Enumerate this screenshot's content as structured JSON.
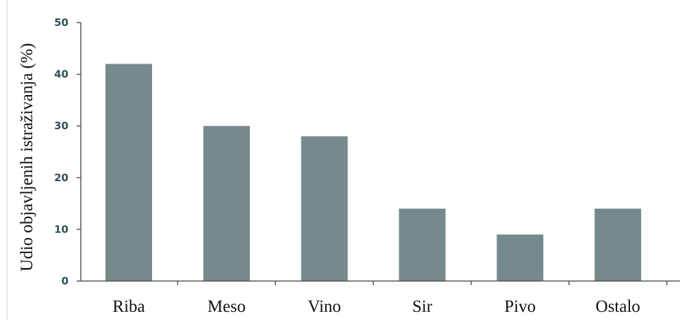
{
  "chart_data": {
    "type": "bar",
    "categories": [
      "Riba",
      "Meso",
      "Vino",
      "Sir",
      "Pivo",
      "Ostalo"
    ],
    "values": [
      42,
      30,
      28,
      14,
      9,
      14
    ],
    "xlabel": "",
    "ylabel": "Udio objavljenih istraživanja (%)",
    "ylim": [
      0,
      50
    ],
    "yticks": [
      0,
      10,
      20,
      30,
      40,
      50
    ],
    "grid": false,
    "legend": "none",
    "bar_color": "#778a8b"
  }
}
